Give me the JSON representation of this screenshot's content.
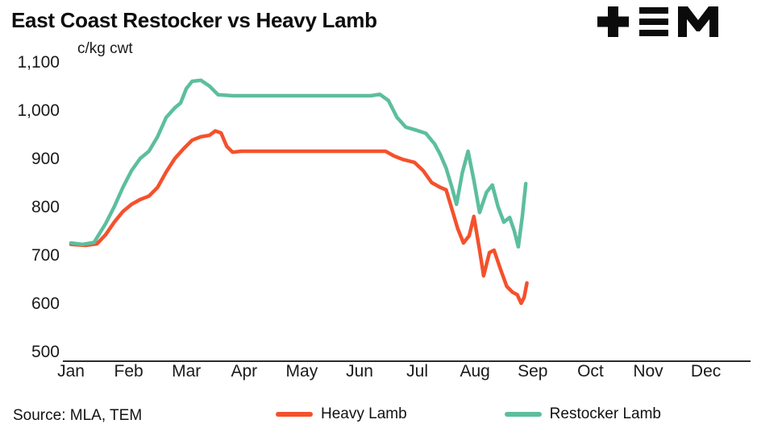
{
  "title": "East Coast Restocker vs Heavy Lamb",
  "unit_label": "c/kg cwt",
  "source": "Source: MLA, TEM",
  "logo": {
    "name": "TEM"
  },
  "colors": {
    "heavy_lamb": "#F4512D",
    "restocker_lamb": "#5CBE9F",
    "axis": "#2B2B2B",
    "text": "#1A1A1A"
  },
  "legend": [
    {
      "label": "Heavy Lamb",
      "color": "#F4512D"
    },
    {
      "label": "Restocker Lamb",
      "color": "#5CBE9F"
    }
  ],
  "chart_data": {
    "type": "line",
    "title": "East Coast Restocker vs Heavy Lamb",
    "xlabel": "",
    "ylabel": "c/kg cwt",
    "ylim": [
      500,
      1100
    ],
    "yticks": [
      1100,
      1000,
      900,
      800,
      700,
      600,
      500
    ],
    "ytick_labels": [
      "1,100",
      "1,000",
      "900",
      "800",
      "700",
      "600",
      "500"
    ],
    "x_categories": [
      "Jan",
      "Feb",
      "Mar",
      "Apr",
      "May",
      "Jun",
      "Jul",
      "Aug",
      "Sep",
      "Oct",
      "Nov",
      "Dec"
    ],
    "x_unit": "month_index_0_is_Jan",
    "grid": false,
    "legend_position": "bottom",
    "series": [
      {
        "name": "Heavy Lamb",
        "color": "#F4512D",
        "points": [
          [
            0,
            722
          ],
          [
            0.25,
            720
          ],
          [
            0.45,
            723
          ],
          [
            0.6,
            742
          ],
          [
            0.75,
            768
          ],
          [
            0.9,
            790
          ],
          [
            1.05,
            805
          ],
          [
            1.2,
            815
          ],
          [
            1.35,
            822
          ],
          [
            1.5,
            840
          ],
          [
            1.65,
            872
          ],
          [
            1.8,
            900
          ],
          [
            1.95,
            920
          ],
          [
            2.1,
            938
          ],
          [
            2.25,
            945
          ],
          [
            2.4,
            948
          ],
          [
            2.5,
            957
          ],
          [
            2.6,
            953
          ],
          [
            2.7,
            925
          ],
          [
            2.8,
            913
          ],
          [
            2.95,
            915
          ],
          [
            3.5,
            915
          ],
          [
            4.2,
            915
          ],
          [
            5.0,
            915
          ],
          [
            5.45,
            915
          ],
          [
            5.6,
            905
          ],
          [
            5.75,
            898
          ],
          [
            5.95,
            892
          ],
          [
            6.1,
            875
          ],
          [
            6.25,
            850
          ],
          [
            6.4,
            840
          ],
          [
            6.5,
            835
          ],
          [
            6.6,
            795
          ],
          [
            6.7,
            755
          ],
          [
            6.8,
            725
          ],
          [
            6.9,
            740
          ],
          [
            6.98,
            780
          ],
          [
            7.08,
            710
          ],
          [
            7.15,
            657
          ],
          [
            7.25,
            705
          ],
          [
            7.33,
            710
          ],
          [
            7.45,
            668
          ],
          [
            7.55,
            635
          ],
          [
            7.65,
            623
          ],
          [
            7.73,
            618
          ],
          [
            7.8,
            600
          ],
          [
            7.85,
            612
          ],
          [
            7.9,
            642
          ]
        ]
      },
      {
        "name": "Restocker Lamb",
        "color": "#5CBE9F",
        "points": [
          [
            0,
            725
          ],
          [
            0.2,
            722
          ],
          [
            0.4,
            726
          ],
          [
            0.6,
            765
          ],
          [
            0.75,
            800
          ],
          [
            0.9,
            840
          ],
          [
            1.05,
            875
          ],
          [
            1.2,
            900
          ],
          [
            1.35,
            915
          ],
          [
            1.5,
            945
          ],
          [
            1.65,
            985
          ],
          [
            1.8,
            1005
          ],
          [
            1.9,
            1015
          ],
          [
            2.0,
            1045
          ],
          [
            2.1,
            1060
          ],
          [
            2.25,
            1062
          ],
          [
            2.4,
            1050
          ],
          [
            2.55,
            1032
          ],
          [
            2.8,
            1030
          ],
          [
            3.5,
            1030
          ],
          [
            4.2,
            1030
          ],
          [
            5.0,
            1030
          ],
          [
            5.2,
            1030
          ],
          [
            5.35,
            1033
          ],
          [
            5.5,
            1020
          ],
          [
            5.65,
            985
          ],
          [
            5.8,
            965
          ],
          [
            6.0,
            958
          ],
          [
            6.15,
            952
          ],
          [
            6.3,
            930
          ],
          [
            6.4,
            908
          ],
          [
            6.5,
            880
          ],
          [
            6.6,
            840
          ],
          [
            6.68,
            805
          ],
          [
            6.78,
            870
          ],
          [
            6.88,
            915
          ],
          [
            6.98,
            855
          ],
          [
            7.08,
            788
          ],
          [
            7.2,
            830
          ],
          [
            7.3,
            845
          ],
          [
            7.4,
            800
          ],
          [
            7.5,
            768
          ],
          [
            7.6,
            778
          ],
          [
            7.68,
            750
          ],
          [
            7.75,
            717
          ],
          [
            7.82,
            780
          ],
          [
            7.88,
            848
          ]
        ]
      }
    ]
  }
}
